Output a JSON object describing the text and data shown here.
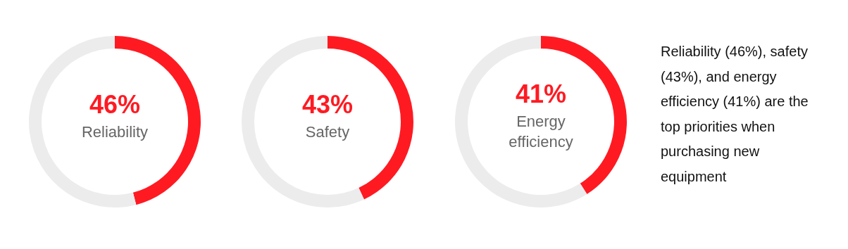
{
  "chart_data": [
    {
      "type": "donut",
      "categories": [
        "Reliability",
        null
      ],
      "values": [
        46,
        54
      ],
      "colors": [
        "#ff1a22",
        "#ececec"
      ],
      "value_labels": [
        "46%",
        null
      ]
    },
    {
      "type": "donut",
      "categories": [
        "Safety",
        null
      ],
      "values": [
        43,
        57
      ],
      "colors": [
        "#ff1a22",
        "#ececec"
      ],
      "value_labels": [
        "43%",
        null
      ]
    },
    {
      "type": "donut",
      "categories": [
        "Energy efficiency",
        null
      ],
      "values": [
        41,
        59
      ],
      "colors": [
        "#ff1a22",
        "#ececec"
      ],
      "value_labels": [
        "41%",
        null
      ]
    },
    {
      "type": "other",
      "annotations": [
        "Reliability (46%), safety (43%), and energy efficiency (41%) are the top priorities when purchasing new equipment"
      ]
    }
  ]
}
